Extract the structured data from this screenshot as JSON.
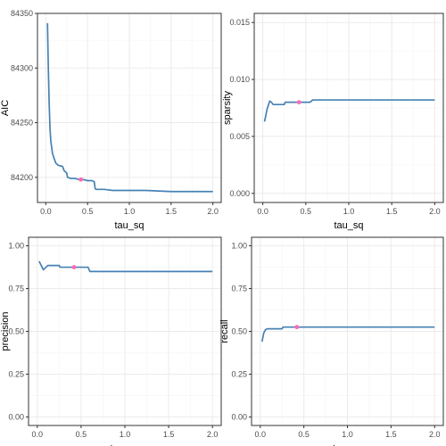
{
  "chart_data": [
    {
      "type": "line",
      "xlabel": "tau_sq",
      "ylabel": "AIC",
      "xlim": [
        -0.1,
        2.1
      ],
      "ylim": [
        84177,
        84350
      ],
      "xticks": [
        0.0,
        0.5,
        1.0,
        1.5,
        2.0
      ],
      "xtick_labels": [
        "0.0",
        "0.5",
        "1.0",
        "1.5",
        "2.0"
      ],
      "yticks": [
        84200,
        84250,
        84300,
        84350
      ],
      "ytick_labels": [
        "84200",
        "84250",
        "84300",
        "84350"
      ],
      "grid": true,
      "line_color": "#4682B4",
      "highlight_color": "#FF69B4",
      "series": [
        {
          "x": [
            0.02,
            0.03,
            0.04,
            0.05,
            0.06,
            0.08,
            0.1,
            0.12,
            0.15,
            0.2,
            0.22,
            0.25,
            0.26,
            0.3,
            0.35,
            0.4,
            0.45,
            0.5,
            0.55,
            0.58,
            0.59,
            0.6,
            0.7,
            0.8,
            1.0,
            1.2,
            1.5,
            1.8,
            2.0
          ],
          "y": [
            84341,
            84300,
            84268,
            84245,
            84233,
            84222,
            84217,
            84213,
            84211,
            84210,
            84206,
            84204,
            84200,
            84199,
            84199,
            84198,
            84198,
            84197,
            84197,
            84196,
            84190,
            84189,
            84189,
            84188,
            84188,
            84188,
            84187,
            84187,
            84187
          ]
        }
      ],
      "highlight": {
        "x": 0.42,
        "y": 84198
      }
    },
    {
      "type": "line",
      "xlabel": "tau_sq",
      "ylabel": "sparsity",
      "xlim": [
        -0.1,
        2.1
      ],
      "ylim": [
        -0.0008,
        0.0158
      ],
      "xticks": [
        0.0,
        0.5,
        1.0,
        1.5,
        2.0
      ],
      "xtick_labels": [
        "0.0",
        "0.5",
        "1.0",
        "1.5",
        "2.0"
      ],
      "yticks": [
        0.0,
        0.005,
        0.01,
        0.015
      ],
      "ytick_labels": [
        "0.000",
        "0.005",
        "0.010",
        "0.015"
      ],
      "grid": true,
      "line_color": "#4682B4",
      "highlight_color": "#FF69B4",
      "series": [
        {
          "x": [
            0.02,
            0.05,
            0.08,
            0.1,
            0.12,
            0.15,
            0.25,
            0.26,
            0.4,
            0.45,
            0.55,
            0.58,
            0.6,
            1.0,
            1.5,
            2.0
          ],
          "y": [
            0.0063,
            0.0074,
            0.0081,
            0.008,
            0.0078,
            0.0078,
            0.0078,
            0.008,
            0.008,
            0.008,
            0.008,
            0.0082,
            0.0082,
            0.0082,
            0.0082,
            0.0082
          ]
        }
      ],
      "highlight": {
        "x": 0.42,
        "y": 0.008
      }
    },
    {
      "type": "line",
      "xlabel": "tau_sq",
      "ylabel": "precision",
      "xlim": [
        -0.1,
        2.1
      ],
      "ylim": [
        -0.05,
        1.05
      ],
      "xticks": [
        0.0,
        0.5,
        1.0,
        1.5,
        2.0
      ],
      "xtick_labels": [
        "0.0",
        "0.5",
        "1.0",
        "1.5",
        "2.0"
      ],
      "yticks": [
        0.0,
        0.25,
        0.5,
        0.75,
        1.0
      ],
      "ytick_labels": [
        "0.00",
        "0.25",
        "0.50",
        "0.75",
        "1.00"
      ],
      "grid": true,
      "line_color": "#4682B4",
      "highlight_color": "#FF69B4",
      "series": [
        {
          "x": [
            0.02,
            0.04,
            0.07,
            0.1,
            0.12,
            0.15,
            0.25,
            0.26,
            0.4,
            0.5,
            0.58,
            0.6,
            1.0,
            1.5,
            2.0
          ],
          "y": [
            0.91,
            0.89,
            0.86,
            0.875,
            0.885,
            0.885,
            0.885,
            0.875,
            0.875,
            0.875,
            0.875,
            0.85,
            0.85,
            0.85,
            0.85
          ]
        }
      ],
      "highlight": {
        "x": 0.42,
        "y": 0.875
      }
    },
    {
      "type": "line",
      "xlabel": "tau_sq",
      "ylabel": "recall",
      "xlim": [
        -0.1,
        2.1
      ],
      "ylim": [
        -0.05,
        1.05
      ],
      "xticks": [
        0.0,
        0.5,
        1.0,
        1.5,
        2.0
      ],
      "xtick_labels": [
        "0.0",
        "0.5",
        "1.0",
        "1.5",
        "2.0"
      ],
      "yticks": [
        0.0,
        0.25,
        0.5,
        0.75,
        1.0
      ],
      "ytick_labels": [
        "0.00",
        "0.25",
        "0.50",
        "0.75",
        "1.00"
      ],
      "grid": true,
      "line_color": "#4682B4",
      "highlight_color": "#FF69B4",
      "series": [
        {
          "x": [
            0.02,
            0.04,
            0.06,
            0.08,
            0.1,
            0.15,
            0.25,
            0.26,
            0.4,
            0.6,
            1.0,
            1.5,
            2.0
          ],
          "y": [
            0.44,
            0.49,
            0.51,
            0.515,
            0.515,
            0.515,
            0.515,
            0.525,
            0.525,
            0.525,
            0.525,
            0.525,
            0.525
          ]
        }
      ],
      "highlight": {
        "x": 0.42,
        "y": 0.525
      }
    }
  ]
}
